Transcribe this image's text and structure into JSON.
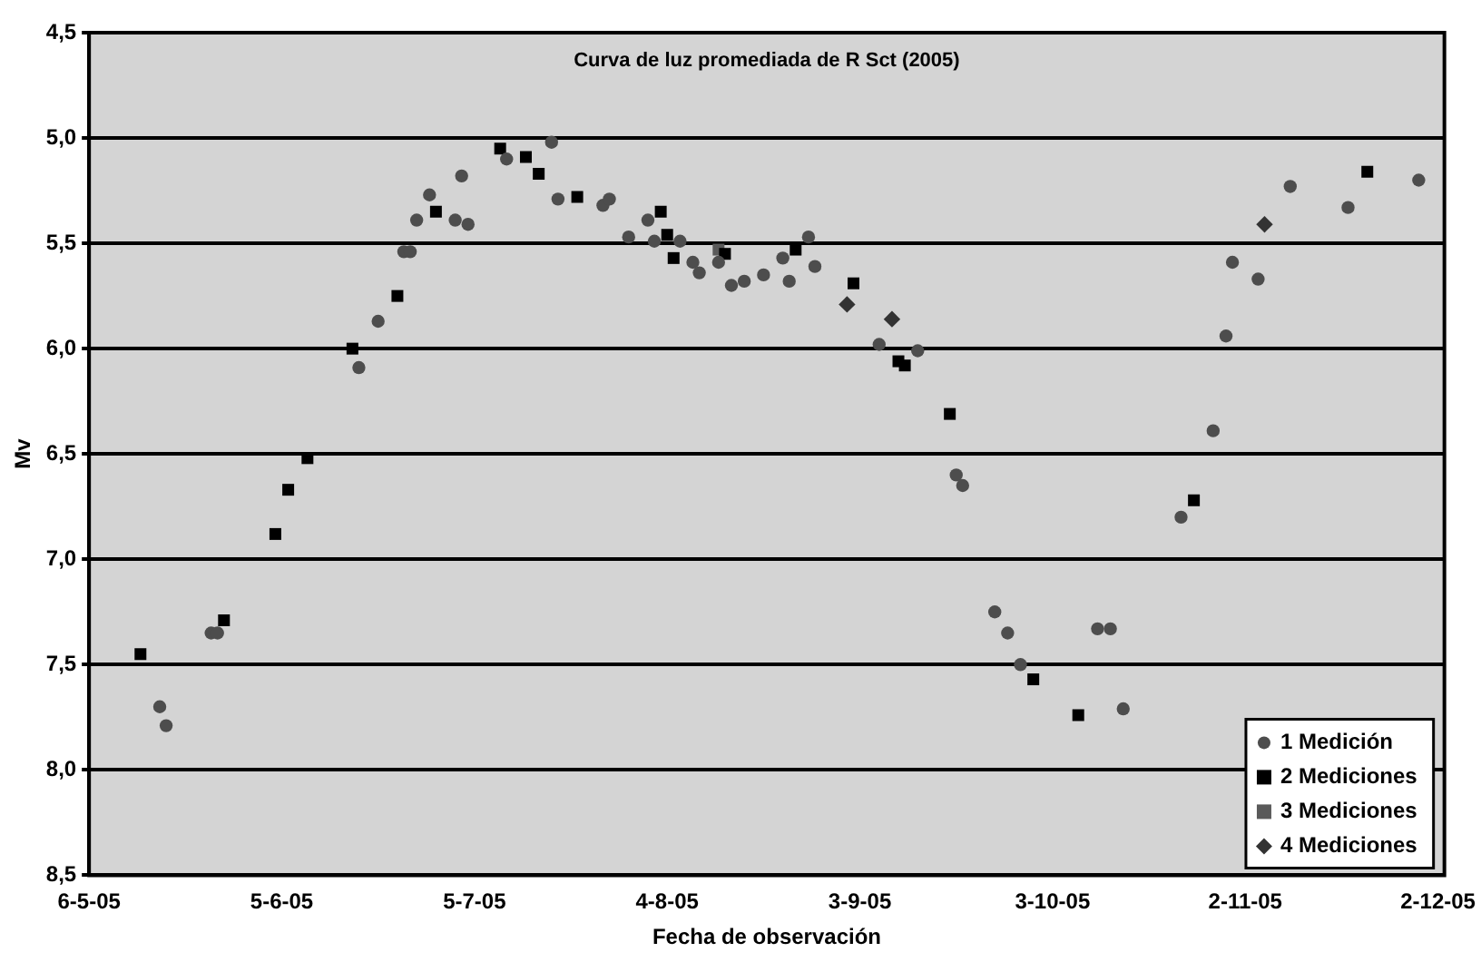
{
  "chart_data": {
    "type": "scatter",
    "title": "Curva de luz promediada de R Sct (2005)",
    "xlabel": "Fecha de observación",
    "ylabel": "Mv",
    "xlim": [
      "2005-05-06",
      "2005-12-03"
    ],
    "xticks": [
      {
        "value": "2005-05-06",
        "label": "6-5-05"
      },
      {
        "value": "2005-06-05",
        "label": "5-6-05"
      },
      {
        "value": "2005-07-05",
        "label": "5-7-05"
      },
      {
        "value": "2005-08-04",
        "label": "4-8-05"
      },
      {
        "value": "2005-09-03",
        "label": "3-9-05"
      },
      {
        "value": "2005-10-03",
        "label": "3-10-05"
      },
      {
        "value": "2005-11-02",
        "label": "2-11-05"
      },
      {
        "value": "2005-12-02",
        "label": "2-12-05"
      }
    ],
    "ylim": [
      8.5,
      4.5
    ],
    "yticks": [
      {
        "value": 4.5,
        "label": "4,5"
      },
      {
        "value": 5.0,
        "label": "5,0"
      },
      {
        "value": 5.5,
        "label": "5,5"
      },
      {
        "value": 6.0,
        "label": "6,0"
      },
      {
        "value": 6.5,
        "label": "6,5"
      },
      {
        "value": 7.0,
        "label": "7,0"
      },
      {
        "value": 7.5,
        "label": "7,5"
      },
      {
        "value": 8.0,
        "label": "8,0"
      },
      {
        "value": 8.5,
        "label": "8,5"
      }
    ],
    "grid": "y",
    "legend": "bottom right",
    "series": [
      {
        "name": "1 Medición",
        "color": "#4d4d4d",
        "marker": "circle",
        "x": [
          "2005-05-17",
          "2005-05-18",
          "2005-05-25",
          "2005-05-26",
          "2005-06-17",
          "2005-06-20",
          "2005-06-24",
          "2005-06-25",
          "2005-06-26",
          "2005-06-28",
          "2005-07-02",
          "2005-07-03",
          "2005-07-04",
          "2005-07-10",
          "2005-07-17",
          "2005-07-18",
          "2005-07-25",
          "2005-07-26",
          "2005-07-29",
          "2005-08-01",
          "2005-08-02",
          "2005-08-06",
          "2005-08-08",
          "2005-08-09",
          "2005-08-12",
          "2005-08-14",
          "2005-08-16",
          "2005-08-19",
          "2005-08-22",
          "2005-08-23",
          "2005-08-26",
          "2005-08-27",
          "2005-09-06",
          "2005-09-12",
          "2005-09-18",
          "2005-09-19",
          "2005-09-24",
          "2005-09-26",
          "2005-09-28",
          "2005-10-10",
          "2005-10-12",
          "2005-10-14",
          "2005-10-23",
          "2005-10-28",
          "2005-10-30",
          "2005-10-31",
          "2005-11-04",
          "2005-11-09",
          "2005-11-18",
          "2005-11-29"
        ],
        "values": [
          7.7,
          7.79,
          7.35,
          7.35,
          6.09,
          5.87,
          5.54,
          5.54,
          5.39,
          5.27,
          5.39,
          5.18,
          5.41,
          5.1,
          5.02,
          5.29,
          5.32,
          5.29,
          5.47,
          5.39,
          5.49,
          5.49,
          5.59,
          5.64,
          5.59,
          5.7,
          5.68,
          5.65,
          5.57,
          5.68,
          5.47,
          5.61,
          5.98,
          6.01,
          6.6,
          6.65,
          7.25,
          7.35,
          7.5,
          7.33,
          7.33,
          7.71,
          6.8,
          6.39,
          5.94,
          5.59,
          5.67,
          5.23,
          5.33,
          5.2
        ]
      },
      {
        "name": "2 Mediciones",
        "color": "#000000",
        "marker": "square",
        "x": [
          "2005-05-14",
          "2005-05-27",
          "2005-06-04",
          "2005-06-06",
          "2005-06-09",
          "2005-06-16",
          "2005-06-23",
          "2005-06-29",
          "2005-07-09",
          "2005-07-13",
          "2005-07-15",
          "2005-07-21",
          "2005-08-03",
          "2005-08-04",
          "2005-08-05",
          "2005-08-13",
          "2005-08-24",
          "2005-09-02",
          "2005-09-09",
          "2005-09-10",
          "2005-09-17",
          "2005-09-30",
          "2005-10-07",
          "2005-10-25",
          "2005-11-21"
        ],
        "values": [
          7.45,
          7.29,
          6.88,
          6.67,
          6.52,
          6.0,
          5.75,
          5.35,
          5.05,
          5.09,
          5.17,
          5.28,
          5.35,
          5.46,
          5.57,
          5.55,
          5.53,
          5.69,
          6.06,
          6.08,
          6.31,
          7.57,
          7.74,
          6.72,
          5.16
        ]
      },
      {
        "name": "3 Mediciones",
        "color": "#5a5a5a",
        "marker": "square",
        "x": [
          "2005-08-12"
        ],
        "values": [
          5.53
        ]
      },
      {
        "name": "4 Mediciones",
        "color": "#333333",
        "marker": "diamond",
        "x": [
          "2005-09-01",
          "2005-09-08",
          "2005-11-05"
        ],
        "values": [
          5.79,
          5.86,
          5.41
        ]
      }
    ]
  }
}
